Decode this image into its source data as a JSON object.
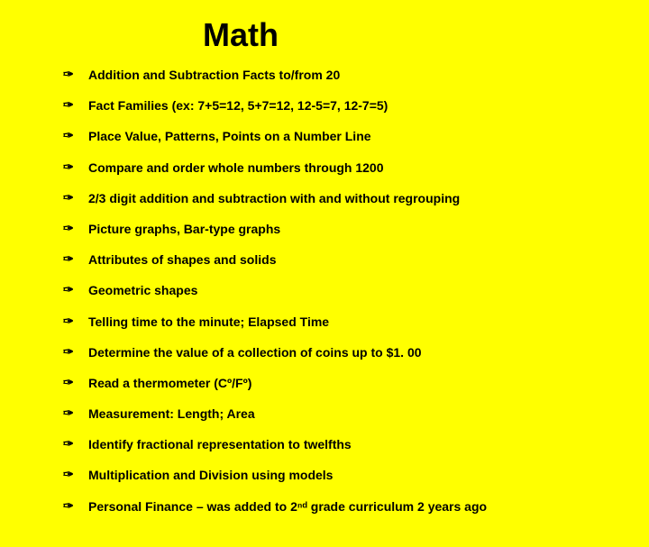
{
  "title": "Math",
  "bullet_glyph": "✑",
  "colors": {
    "background": "#ffff00",
    "text": "#000000"
  },
  "typography": {
    "title_fontsize": 36,
    "item_fontsize": 14,
    "title_weight": "bold",
    "item_weight": "bold",
    "font_family": "Arial"
  },
  "items": [
    "Addition and Subtraction Facts to/from 20",
    "Fact Families (ex: 7+5=12, 5+7=12, 12-5=7, 12-7=5)",
    "Place Value, Patterns, Points on a Number Line",
    "Compare and order whole numbers through 1200",
    "2/3 digit addition and subtraction with and without regrouping",
    "Picture graphs, Bar-type graphs",
    "Attributes of shapes and solids",
    "Geometric shapes",
    "Telling time to the minute; Elapsed Time",
    "Determine the value of a collection of coins up to $1. 00",
    "Read a thermometer (Cº/Fº)",
    "Measurement:  Length; Area",
    "Identify fractional representation to twelfths",
    "Multiplication and Division using models",
    "Personal Finance – was added to 2ⁿᵈ grade curriculum 2 years ago"
  ]
}
